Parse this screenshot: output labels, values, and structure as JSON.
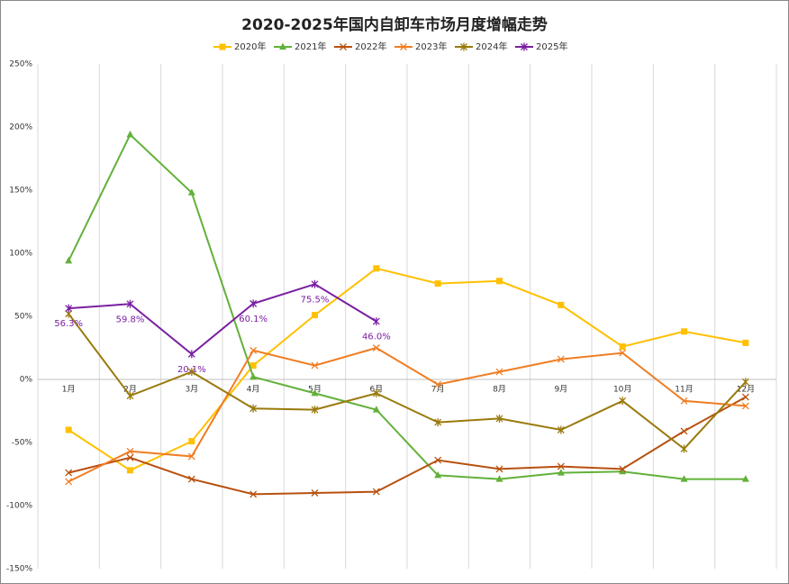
{
  "chart_data": {
    "type": "line",
    "title": "2020-2025年国内自卸车市场月度增幅走势",
    "categories": [
      "1月",
      "2月",
      "3月",
      "4月",
      "5月",
      "6月",
      "7月",
      "8月",
      "9月",
      "10月",
      "11月",
      "12月"
    ],
    "ylim": [
      -150,
      250
    ],
    "yticks": [
      {
        "value": -150,
        "label": "-150%"
      },
      {
        "value": -100,
        "label": "-100%"
      },
      {
        "value": -50,
        "label": "-50%"
      },
      {
        "value": 0,
        "label": "0%"
      },
      {
        "value": 50,
        "label": "50%"
      },
      {
        "value": 100,
        "label": "100%"
      },
      {
        "value": 150,
        "label": "150%"
      },
      {
        "value": 200,
        "label": "200%"
      },
      {
        "value": 250,
        "label": "250%"
      }
    ],
    "grid": "x",
    "legend": "top",
    "series": [
      {
        "name": "2020年",
        "color": "#FFC000",
        "marker": "square",
        "values": [
          -40,
          -72,
          -49,
          11,
          51,
          88,
          76,
          78,
          59,
          26,
          38,
          29
        ]
      },
      {
        "name": "2021年",
        "color": "#62B13A",
        "marker": "triangle",
        "values": [
          94,
          194,
          148,
          2,
          -11,
          -24,
          -76,
          -79,
          -74,
          -73,
          -79,
          -79
        ]
      },
      {
        "name": "2022年",
        "color": "#B8500E",
        "marker": "x",
        "values": [
          -74,
          -62,
          -79,
          -91,
          -90,
          -89,
          -64,
          -71,
          -69,
          -71,
          -41,
          -14
        ]
      },
      {
        "name": "2023年",
        "color": "#F07D22",
        "marker": "x",
        "values": [
          -81,
          -57,
          -61,
          23,
          11,
          25,
          -4,
          6,
          16,
          21,
          -17,
          -21
        ]
      },
      {
        "name": "2024年",
        "color": "#9A7A0C",
        "marker": "star",
        "values": [
          52,
          -13,
          6,
          -23,
          -24,
          -11,
          -34,
          -31,
          -40,
          -17,
          -55,
          -2
        ]
      },
      {
        "name": "2025年",
        "color": "#7A1FA2",
        "marker": "star",
        "values": [
          56.3,
          59.8,
          20.1,
          60.1,
          75.5,
          46.0,
          null,
          null,
          null,
          null,
          null,
          null
        ],
        "value_labels": [
          "56.3%",
          "59.8%",
          "20.1%",
          "60.1%",
          "75.5%",
          "46.0%",
          null,
          null,
          null,
          null,
          null,
          null
        ]
      }
    ]
  }
}
